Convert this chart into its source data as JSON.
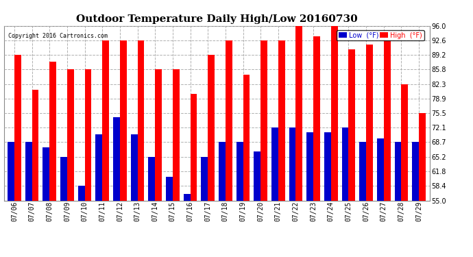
{
  "title": "Outdoor Temperature Daily High/Low 20160730",
  "copyright": "Copyright 2016 Cartronics.com",
  "dates": [
    "07/06",
    "07/07",
    "07/08",
    "07/09",
    "07/10",
    "07/11",
    "07/12",
    "07/13",
    "07/14",
    "07/15",
    "07/16",
    "07/17",
    "07/18",
    "07/19",
    "07/20",
    "07/21",
    "07/22",
    "07/23",
    "07/24",
    "07/25",
    "07/26",
    "07/27",
    "07/28",
    "07/29"
  ],
  "highs": [
    89.2,
    81.0,
    87.5,
    85.8,
    85.8,
    92.6,
    92.6,
    92.6,
    85.8,
    85.8,
    80.0,
    89.2,
    92.6,
    84.5,
    92.6,
    92.6,
    96.0,
    93.5,
    96.0,
    90.5,
    91.5,
    92.6,
    82.3,
    75.5
  ],
  "lows": [
    68.7,
    68.7,
    67.5,
    65.2,
    58.4,
    70.5,
    74.5,
    70.5,
    65.2,
    60.5,
    56.5,
    65.2,
    68.7,
    68.7,
    66.5,
    72.1,
    72.1,
    71.0,
    71.0,
    72.1,
    68.7,
    69.5,
    68.7,
    68.7
  ],
  "ylim": [
    55.0,
    96.0
  ],
  "yticks": [
    55.0,
    58.4,
    61.8,
    65.2,
    68.7,
    72.1,
    75.5,
    78.9,
    82.3,
    85.8,
    89.2,
    92.6,
    96.0
  ],
  "bar_width": 0.38,
  "high_color": "#ff0000",
  "low_color": "#0000cc",
  "background_color": "#ffffff",
  "grid_color": "#b0b0b0",
  "title_fontsize": 11,
  "tick_fontsize": 7,
  "legend_low_label": "Low  (°F)",
  "legend_high_label": "High  (°F)"
}
